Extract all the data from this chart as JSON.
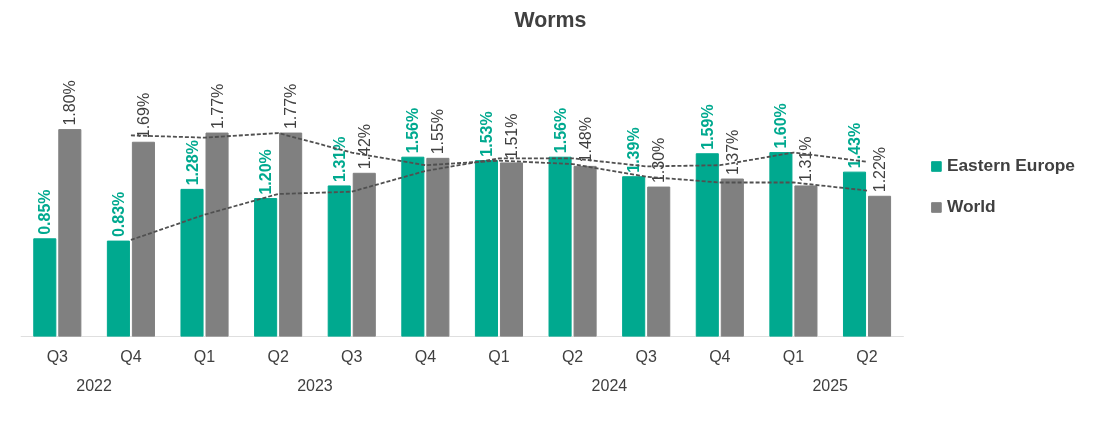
{
  "chart_data": {
    "type": "bar",
    "title": "Worms",
    "categories": [
      "Q3",
      "Q4",
      "Q1",
      "Q2",
      "Q3",
      "Q4",
      "Q1",
      "Q2",
      "Q3",
      "Q4",
      "Q1",
      "Q2"
    ],
    "annotations": [
      "2022",
      "2023",
      "2024",
      "2025"
    ],
    "tick_labels": "x",
    "legend": "right",
    "grid": false,
    "series": [
      {
        "name": "Eastern Europe",
        "color": "#00a98f",
        "values": [
          0.85,
          0.83,
          1.28,
          1.2,
          1.31,
          1.56,
          1.53,
          1.56,
          1.39,
          1.59,
          1.6,
          1.43
        ],
        "value_labels": [
          "0.85%",
          "0.83%",
          "1.28%",
          "1.20%",
          "1.31%",
          "1.56%",
          "1.53%",
          "1.56%",
          "1.39%",
          "1.59%",
          "1.60%",
          "1.43%"
        ]
      },
      {
        "name": "World",
        "color": "#808080",
        "values": [
          1.8,
          1.69,
          1.77,
          1.77,
          1.42,
          1.55,
          1.51,
          1.48,
          1.3,
          1.37,
          1.31,
          1.22
        ],
        "value_labels": [
          "1.80%",
          "1.69%",
          "1.77%",
          "1.77%",
          "1.42%",
          "1.55%",
          "1.51%",
          "1.48%",
          "1.30%",
          "1.37%",
          "1.31%",
          "1.22%"
        ]
      },
      {
        "type": "line",
        "line_style": "dashed",
        "color": "#505050",
        "values": [
          null,
          0.84,
          1.06,
          1.24,
          1.26,
          1.44,
          1.55,
          1.55,
          1.48,
          1.49,
          1.6,
          1.52
        ]
      },
      {
        "type": "line",
        "line_style": "dashed",
        "color": "#505050",
        "values": [
          null,
          1.75,
          1.73,
          1.77,
          1.6,
          1.49,
          1.53,
          1.5,
          1.39,
          1.34,
          1.34,
          1.27
        ]
      }
    ]
  }
}
